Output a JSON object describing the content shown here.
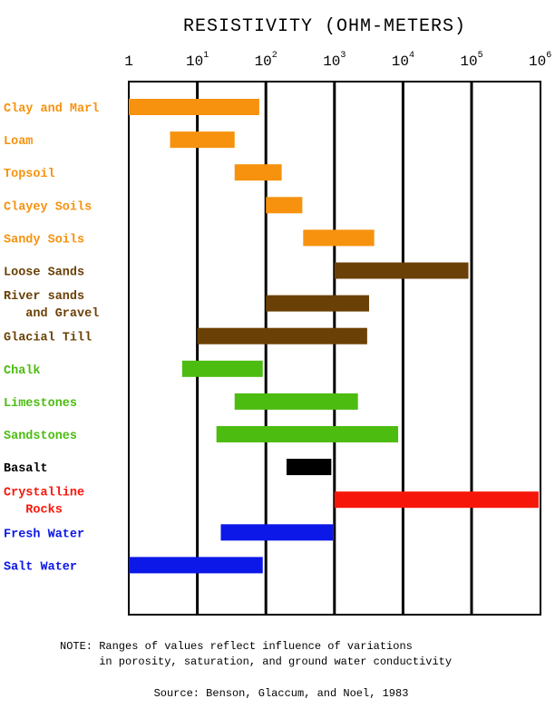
{
  "chart_data": {
    "type": "bar",
    "orientation": "horizontal-range",
    "title": "RESISTIVITY (OHM-METERS)",
    "x_scale": "log",
    "xlim": [
      1,
      1000000
    ],
    "grid": true,
    "tick_labels": [
      {
        "base": "1",
        "exp": ""
      },
      {
        "base": "10",
        "exp": "1"
      },
      {
        "base": "10",
        "exp": "2"
      },
      {
        "base": "10",
        "exp": "3"
      },
      {
        "base": "10",
        "exp": "4"
      },
      {
        "base": "10",
        "exp": "5"
      },
      {
        "base": "10",
        "exp": "6"
      }
    ],
    "categories": [
      {
        "lines": [
          "Clay and Marl"
        ],
        "min": 1,
        "max": 80,
        "color": "#f7920e"
      },
      {
        "lines": [
          "Loam"
        ],
        "min": 4,
        "max": 35,
        "color": "#f7920e"
      },
      {
        "lines": [
          "Topsoil"
        ],
        "min": 35,
        "max": 170,
        "color": "#f7920e"
      },
      {
        "lines": [
          "Clayey Soils"
        ],
        "min": 100,
        "max": 340,
        "color": "#f7920e"
      },
      {
        "lines": [
          "Sandy Soils"
        ],
        "min": 350,
        "max": 3800,
        "color": "#f7920e"
      },
      {
        "lines": [
          "Loose Sands"
        ],
        "min": 1000,
        "max": 90000,
        "color": "#6b4006"
      },
      {
        "lines": [
          "River sands",
          "   and Gravel"
        ],
        "min": 100,
        "max": 3200,
        "color": "#6b4006"
      },
      {
        "lines": [
          "Glacial Till"
        ],
        "min": 10,
        "max": 3000,
        "color": "#6b4006"
      },
      {
        "lines": [
          "Chalk"
        ],
        "min": 6,
        "max": 90,
        "color": "#4cbc10"
      },
      {
        "lines": [
          "Limestones"
        ],
        "min": 35,
        "max": 2200,
        "color": "#4cbc10"
      },
      {
        "lines": [
          "Sandstones"
        ],
        "min": 19,
        "max": 8500,
        "color": "#4cbc10"
      },
      {
        "lines": [
          "Basalt"
        ],
        "min": 200,
        "max": 900,
        "color": "#000000"
      },
      {
        "lines": [
          "Crystalline",
          "   Rocks"
        ],
        "min": 1000,
        "max": 950000,
        "color": "#f7170a"
      },
      {
        "lines": [
          "Fresh Water"
        ],
        "min": 22,
        "max": 950,
        "color": "#0b18e8"
      },
      {
        "lines": [
          "Salt Water"
        ],
        "min": 1,
        "max": 90,
        "color": "#0b18e8"
      }
    ],
    "note_lines": [
      "NOTE: Ranges of values reflect influence of variations",
      "      in porosity, saturation, and ground water conductivity"
    ],
    "source": "Source: Benson, Glaccum, and Noel, 1983"
  }
}
